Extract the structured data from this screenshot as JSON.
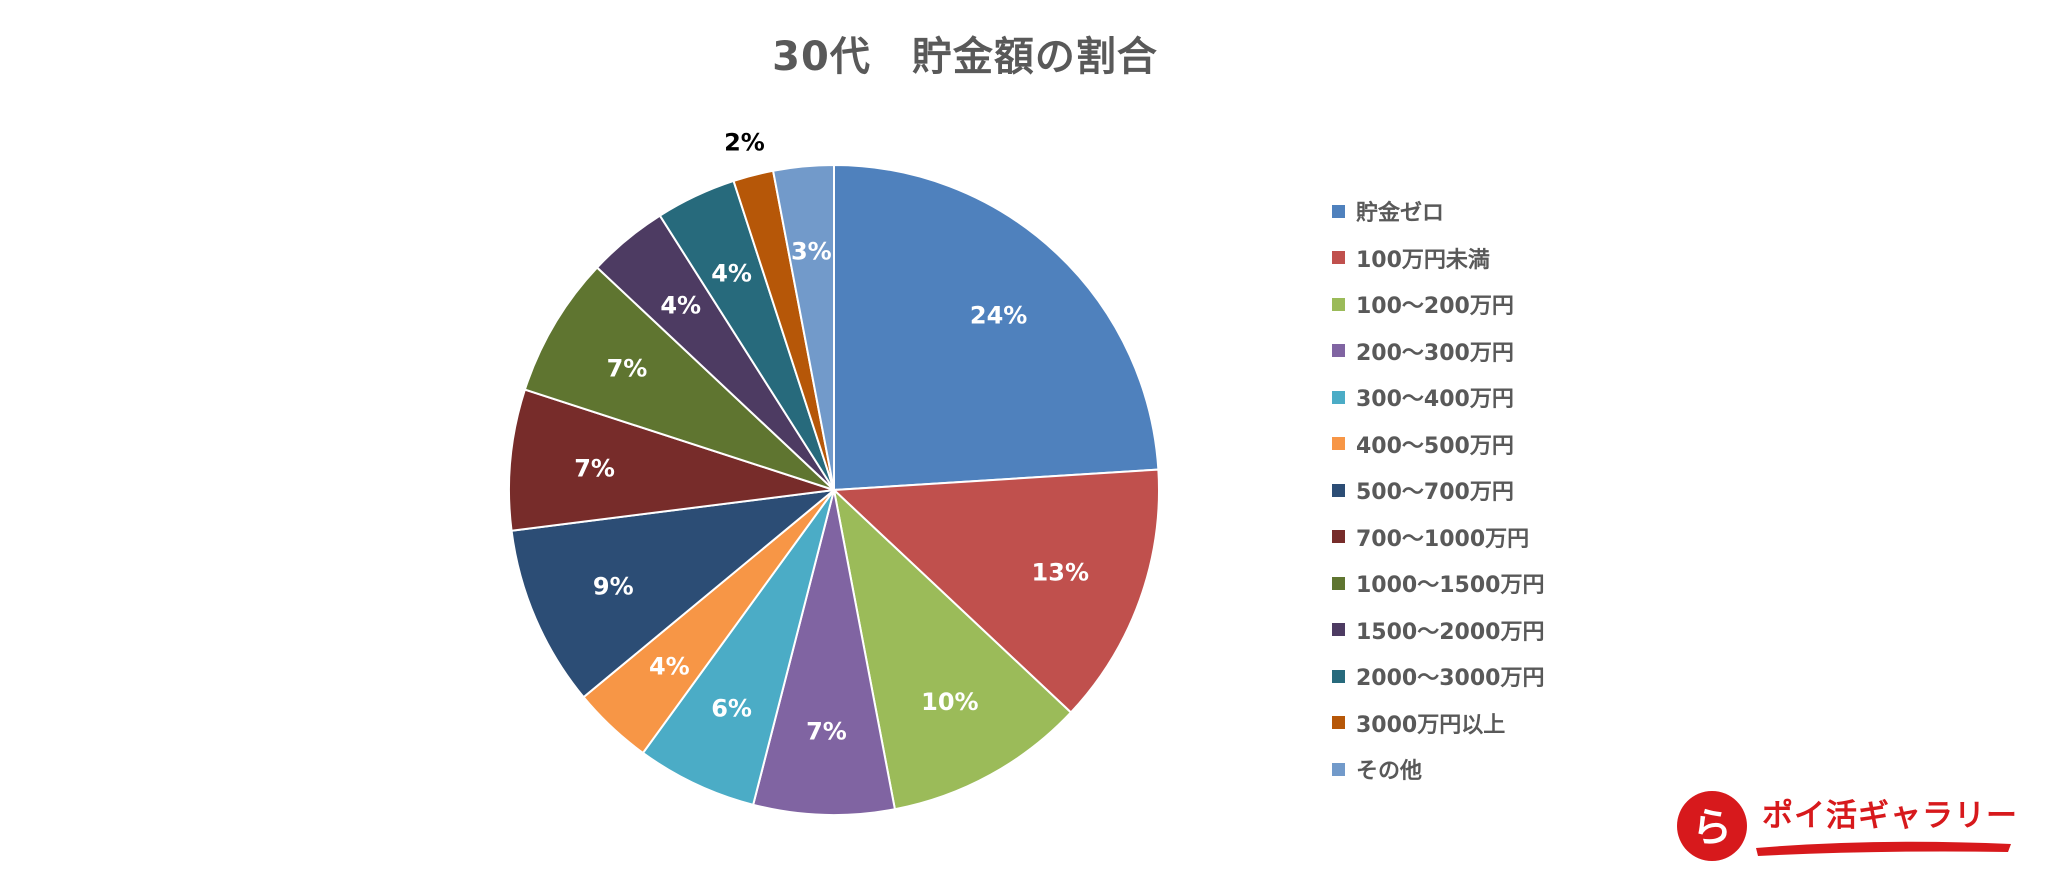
{
  "chart_data": {
    "type": "pie",
    "title": "30代　貯金額の割合",
    "start_angle_deg": 0,
    "direction": "clockwise",
    "legend_position": "right",
    "slices": [
      {
        "label": "貯金ゼロ",
        "value": 24,
        "data_label": "24%",
        "color": "#4f81bd",
        "label_color": "#ffffff"
      },
      {
        "label": "100万円未満",
        "value": 13,
        "data_label": "13%",
        "color": "#c0504d",
        "label_color": "#ffffff"
      },
      {
        "label": "100～200万円",
        "value": 10,
        "data_label": "10%",
        "color": "#9bbb59",
        "label_color": "#ffffff"
      },
      {
        "label": "200～300万円",
        "value": 7,
        "data_label": "7%",
        "color": "#8064a2",
        "label_color": "#ffffff"
      },
      {
        "label": "300～400万円",
        "value": 6,
        "data_label": "6%",
        "color": "#4bacc6",
        "label_color": "#ffffff"
      },
      {
        "label": "400～500万円",
        "value": 4,
        "data_label": "4%",
        "color": "#f79646",
        "label_color": "#ffffff"
      },
      {
        "label": "500～700万円",
        "value": 9,
        "data_label": "9%",
        "color": "#2c4d75",
        "label_color": "#ffffff"
      },
      {
        "label": "700～1000万円",
        "value": 7,
        "data_label": "7%",
        "color": "#772c2a",
        "label_color": "#ffffff"
      },
      {
        "label": "1000～1500万円",
        "value": 7,
        "data_label": "7%",
        "color": "#5f7530",
        "label_color": "#ffffff"
      },
      {
        "label": "1500～2000万円",
        "value": 4,
        "data_label": "4%",
        "color": "#4d3b62",
        "label_color": "#ffffff"
      },
      {
        "label": "2000～3000万円",
        "value": 4,
        "data_label": "4%",
        "color": "#276a7c",
        "label_color": "#ffffff"
      },
      {
        "label": "3000万円以上",
        "value": 2,
        "data_label": "2%",
        "color": "#b65708",
        "label_color": "#000000"
      },
      {
        "label": "その他",
        "value": 3,
        "data_label": "3%",
        "color": "#729aca",
        "label_color": "#ffffff"
      }
    ]
  },
  "logo": {
    "brand_text": "ポイ活ギャラリー",
    "mark_glyph": "ら",
    "accent_color": "#d7191c"
  }
}
